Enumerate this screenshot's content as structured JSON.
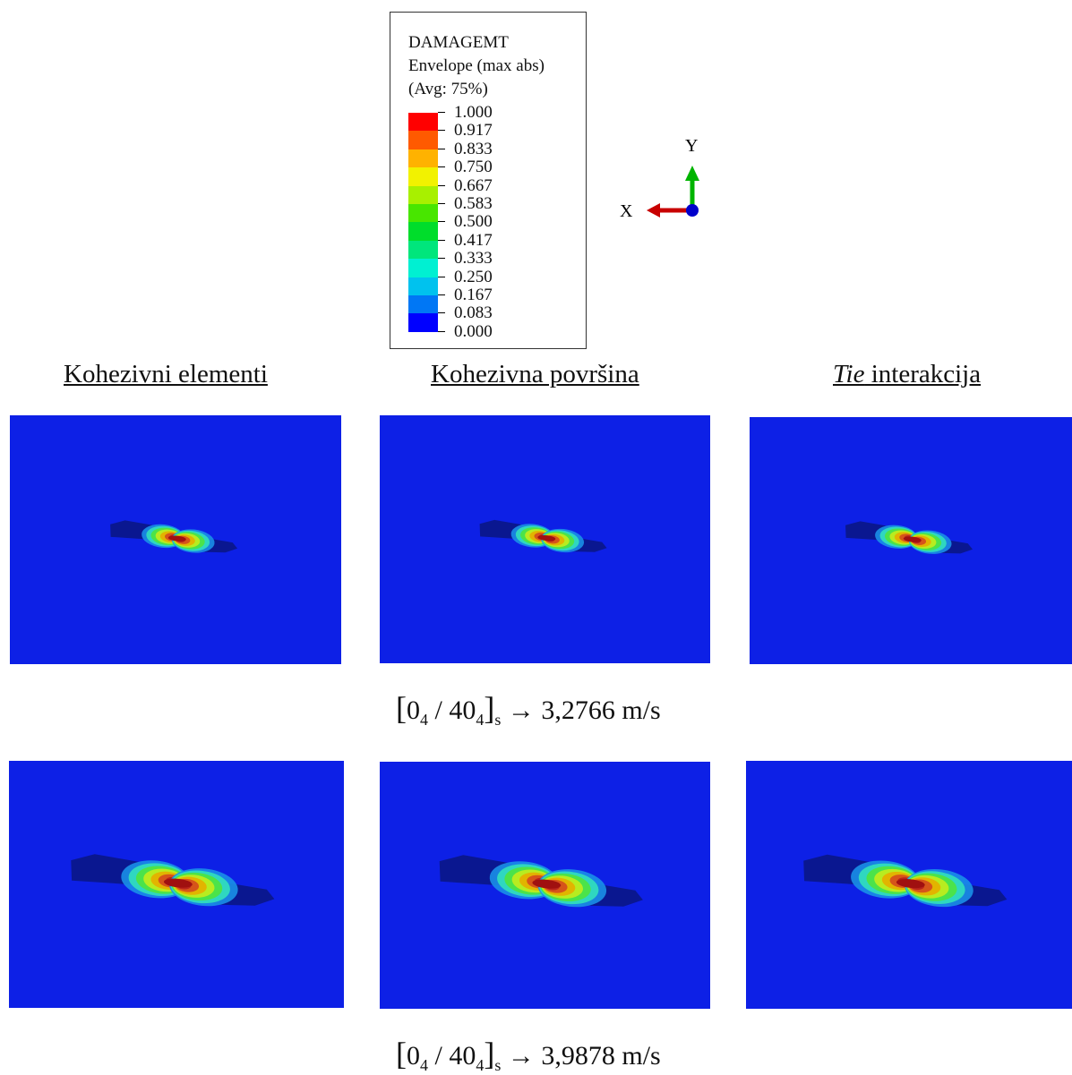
{
  "legend": {
    "title_lines": [
      "DAMAGEMT",
      "Envelope (max abs)",
      "(Avg: 75%)"
    ],
    "values": [
      "1.000",
      "0.917",
      "0.833",
      "0.750",
      "0.667",
      "0.583",
      "0.500",
      "0.417",
      "0.333",
      "0.250",
      "0.167",
      "0.083",
      "0.000"
    ],
    "colors": [
      "#ff0000",
      "#ff5a00",
      "#ffb200",
      "#f2f200",
      "#a8f000",
      "#48e600",
      "#00dd2b",
      "#00e67c",
      "#00f0d2",
      "#00c2ee",
      "#0077f5",
      "#0000ff"
    ]
  },
  "triad": {
    "x_label": "X",
    "y_label": "Y",
    "x_color": "#c80000",
    "y_color": "#00b400",
    "origin_color": "#0000cc"
  },
  "columns": {
    "col1": "Kohezivni elementi",
    "col2": "Kohezivna površina",
    "col3_italic": "Tie",
    "col3_rest": " interakcija"
  },
  "panel_background": "#0d20e6",
  "rows": [
    {
      "layup_base": "0",
      "layup_sub1": "4",
      "layup_mid": " / 40",
      "layup_sub2": "4",
      "layup_sub3": "s",
      "arrow": "→",
      "velocity": "3,2766 m/s"
    },
    {
      "layup_base": "0",
      "layup_sub1": "4",
      "layup_mid": " / 40",
      "layup_sub2": "4",
      "layup_sub3": "s",
      "arrow": "→",
      "velocity": "3,9878 m/s"
    }
  ]
}
